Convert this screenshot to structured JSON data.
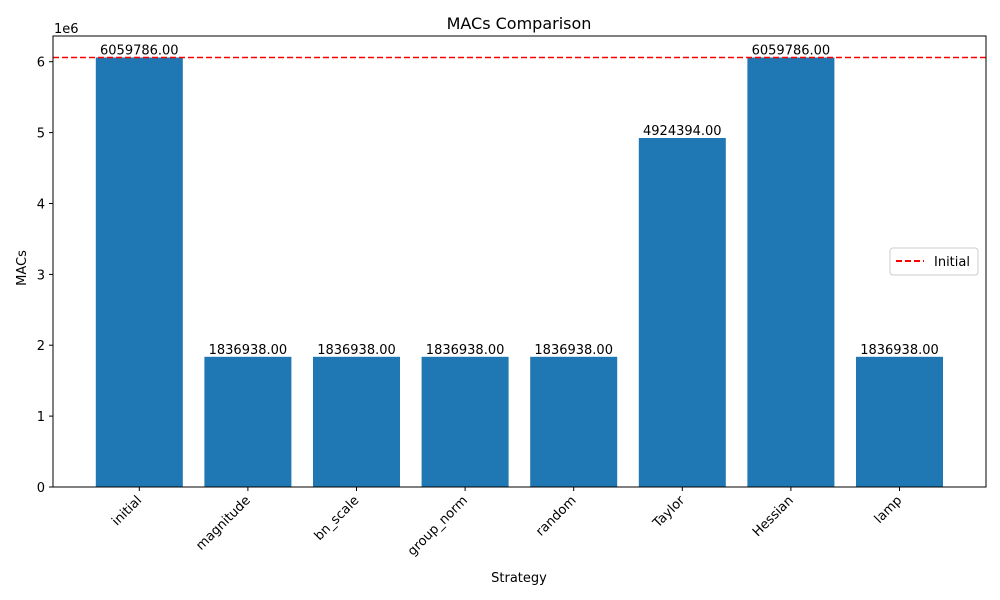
{
  "chart_data": {
    "type": "bar",
    "title": "MACs Comparison",
    "xlabel": "Strategy",
    "ylabel": "MACs",
    "scale_label": "1e6",
    "categories": [
      "initial",
      "magnitude",
      "bn_scale",
      "group_norm",
      "random",
      "Taylor",
      "Hessian",
      "lamp"
    ],
    "values": [
      6059786,
      1836938,
      1836938,
      1836938,
      1836938,
      4924394,
      6059786,
      1836938
    ],
    "value_labels": [
      "6059786.00",
      "1836938.00",
      "1836938.00",
      "1836938.00",
      "1836938.00",
      "4924394.00",
      "6059786.00",
      "1836938.00"
    ],
    "ylim": [
      0,
      6362775
    ],
    "yticks": [
      0,
      1,
      2,
      3,
      4,
      5,
      6
    ],
    "ytick_multiplier": 1000000,
    "bar_color": "#1f77b4",
    "reference_line": {
      "label": "Initial",
      "value": 6059786,
      "color": "#ff0000",
      "style": "dashed"
    },
    "legend_position": "center-right",
    "grid": false
  }
}
